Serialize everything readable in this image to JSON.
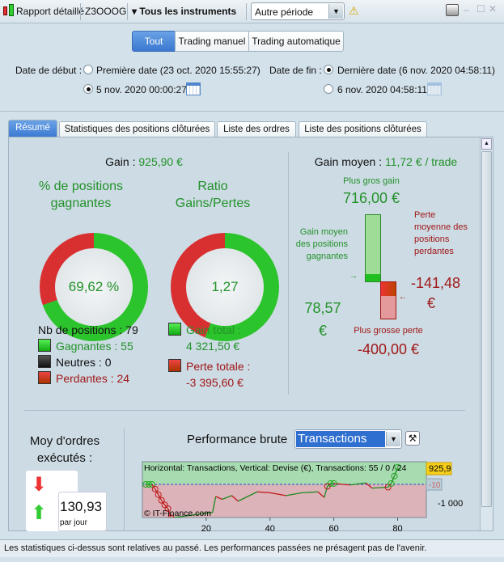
{
  "toolbar": {
    "report": "Rapport détaillé",
    "account": "Z3OOOG",
    "instruments": "Tous les instruments",
    "period": "Autre période"
  },
  "filter": {
    "options": [
      "Tout",
      "Trading manuel",
      "Trading automatique"
    ],
    "active": "Tout"
  },
  "dates": {
    "start_label": "Date de début :",
    "start_first": "Première date (23 oct. 2020 15:55:27)",
    "start_custom": "5 nov. 2020 00:00:27",
    "end_label": "Date de fin :",
    "end_last": "Dernière date (6 nov. 2020 04:58:11)",
    "end_custom": "6 nov. 2020 04:58:11"
  },
  "tabs": [
    "Résumé",
    "Statistiques des positions clôturées",
    "Liste des ordres",
    "Liste des positions clôturées"
  ],
  "summary": {
    "gain_label": "Gain :",
    "gain_value": "925,90 €",
    "pct_title": "% de positions gagnantes",
    "pct_value": "69,62 %",
    "pct_fraction": 0.6962,
    "ratio_title": "Ratio Gains/Pertes",
    "ratio_value": "1,27",
    "ratio_fraction": 0.56,
    "nb_positions": "Nb de positions : 79",
    "gagnantes": "Gagnantes : 55",
    "neutres": "Neutres : 0",
    "perdantes": "Perdantes : 24",
    "gain_total_label": "Gain total :",
    "gain_total": "4 321,50 €",
    "perte_totale_label": "Perte totale :",
    "perte_totale": "-3 395,60 €"
  },
  "avg": {
    "label": "Gain moyen :",
    "value": "11,72 € / trade",
    "biggest_gain_label": "Plus gros gain",
    "biggest_gain": "716,00 €",
    "avg_gain_label": "Gain moyen des positions gagnantes",
    "avg_gain": "78,57 €",
    "avg_loss_label": "Perte moyenne des positions perdantes",
    "avg_loss": "-141,48 €",
    "biggest_loss_label": "Plus grosse perte",
    "biggest_loss": "-400,00 €"
  },
  "orders": {
    "label": "Moy d'ordres exécutés :",
    "value": "130,93",
    "unit": "par jour"
  },
  "performance": {
    "label": "Performance brute",
    "mode": "Transactions"
  },
  "chart_data": {
    "type": "line",
    "info": "Horizontal: Transactions, Vertical: Devise (€), Transactions: 55 / 0 / 24",
    "watermark": "© IT-Finance.com",
    "xticks": [
      "20",
      "40",
      "60",
      "80"
    ],
    "yticks": [
      "-1 000"
    ],
    "last_label": "925,9",
    "zero_label": "-10",
    "xlim": [
      0,
      89
    ],
    "ylim": [
      -1780,
      1220
    ],
    "x": [
      1,
      2,
      3,
      4,
      5,
      6,
      7,
      8,
      9,
      22,
      23,
      25,
      28,
      30,
      33,
      36,
      40,
      45,
      50,
      55,
      57,
      58,
      59,
      60,
      65,
      70,
      72,
      77,
      78,
      79,
      80
    ],
    "y": [
      0,
      0,
      0,
      -250,
      -550,
      -850,
      -1100,
      -1300,
      -1800,
      -1500,
      -650,
      -800,
      -600,
      -900,
      -650,
      -400,
      -450,
      -600,
      -450,
      -400,
      -700,
      -100,
      50,
      50,
      -30,
      80,
      -200,
      -150,
      50,
      450,
      925.9
    ]
  },
  "status": "Les statistiques ci-dessus sont relatives au passé. Les performances passées ne présagent pas de l'avenir."
}
